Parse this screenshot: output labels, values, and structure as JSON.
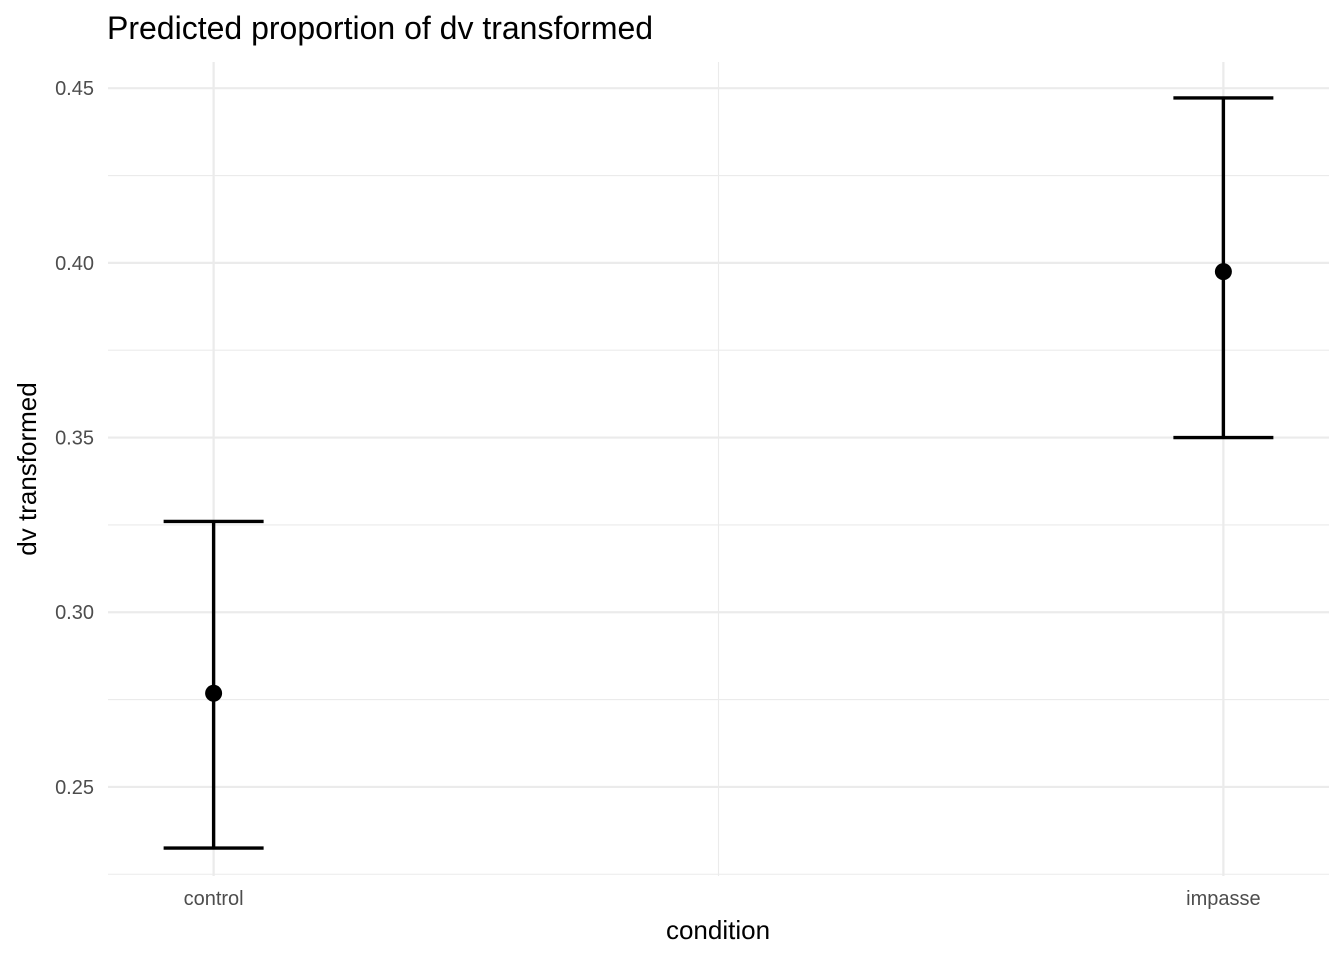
{
  "chart_data": {
    "type": "scatter",
    "title": "Predicted proportion of dv transformed",
    "xlabel": "condition",
    "ylabel": "dv transformed",
    "categories": [
      "control",
      "impasse"
    ],
    "series": [
      {
        "values": [
          0.2768,
          0.3975
        ],
        "lower": [
          0.2325,
          0.35
        ],
        "upper": [
          0.326,
          0.4472
        ]
      }
    ],
    "y_ticks": [
      "0.25",
      "0.30",
      "0.35",
      "0.40",
      "0.45"
    ],
    "y_tick_values": [
      0.25,
      0.3,
      0.35,
      0.4,
      0.45
    ],
    "ylim": [
      0.2245,
      0.4575
    ],
    "grid": true,
    "legend": "none",
    "colors": {
      "points": "#000000",
      "grid": "#ebebeb",
      "tick_text": "#4d4d4d"
    }
  }
}
